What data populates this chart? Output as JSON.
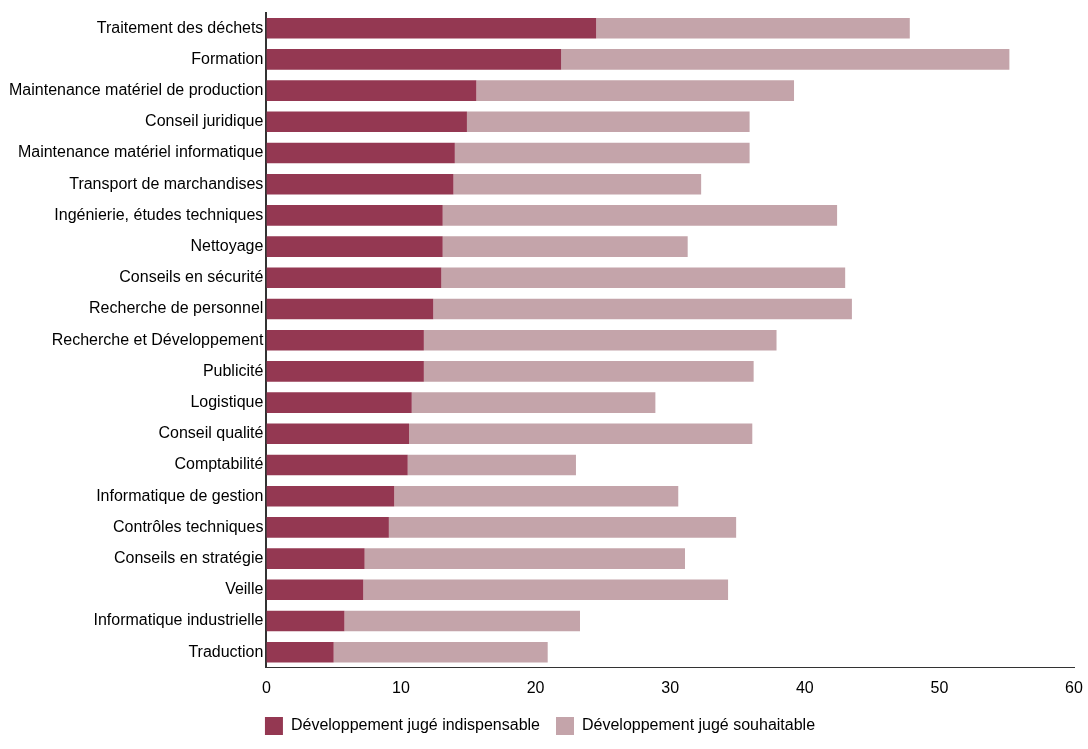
{
  "chart_data": {
    "type": "bar",
    "orientation": "horizontal",
    "stacked": true,
    "categories": [
      "Traitement des déchets",
      "Formation",
      "Maintenance matériel de production",
      "Conseil juridique",
      "Maintenance matériel informatique",
      "Transport de marchandises",
      "Ingénierie, études techniques",
      "Nettoyage",
      "Conseils en sécurité",
      "Recherche de personnel",
      "Recherche et Développement",
      "Publicité",
      "Logistique",
      "Conseil qualité",
      "Comptabilité",
      "Informatique de gestion",
      "Contrôles techniques",
      "Conseils en stratégie",
      "Veille",
      "Informatique industrielle",
      "Traduction"
    ],
    "series": [
      {
        "name": "Développement jugé indispensable",
        "color": "#943852",
        "values": [
          24.5,
          21.9,
          15.6,
          14.9,
          14.0,
          13.9,
          13.1,
          13.1,
          13.0,
          12.4,
          11.7,
          11.7,
          10.8,
          10.6,
          10.5,
          9.5,
          9.1,
          7.3,
          7.2,
          5.8,
          5.0
        ]
      },
      {
        "name": "Développement jugé souhaitable",
        "color": "#c4a4aa",
        "values": [
          23.3,
          33.3,
          23.6,
          21.0,
          21.9,
          18.4,
          29.3,
          18.2,
          30.0,
          31.1,
          26.2,
          24.5,
          18.1,
          25.5,
          12.5,
          21.1,
          25.8,
          23.8,
          27.1,
          17.5,
          15.9
        ]
      }
    ],
    "xlim": [
      0,
      60
    ],
    "xticks": [
      0,
      10,
      20,
      30,
      40,
      50,
      60
    ],
    "grid": false,
    "legend": "bottom"
  }
}
